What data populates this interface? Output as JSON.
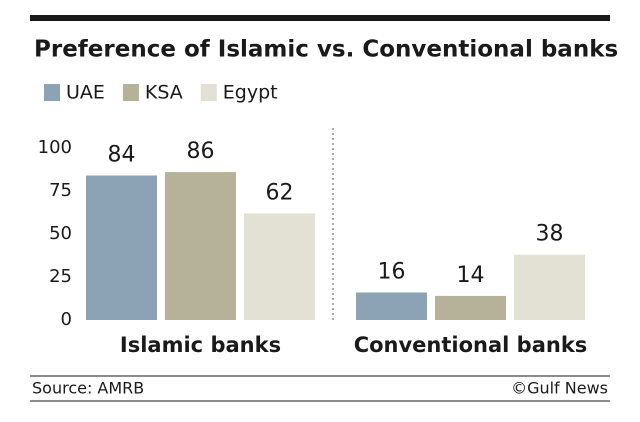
{
  "chart_data": {
    "type": "bar",
    "title": "Preference of Islamic vs. Conventional banks",
    "categories": [
      "Islamic banks",
      "Conventional banks"
    ],
    "series": [
      {
        "name": "UAE",
        "color": "#8ca3b5",
        "values": [
          84,
          16
        ]
      },
      {
        "name": "KSA",
        "color": "#b6b29a",
        "values": [
          86,
          14
        ]
      },
      {
        "name": "Egypt",
        "color": "#e3e0d4",
        "values": [
          62,
          38
        ]
      }
    ],
    "ylim": [
      0,
      100
    ],
    "yticks": [
      0,
      25,
      50,
      75,
      100
    ],
    "grid": false,
    "source": "Source: AMRB",
    "credit": "©Gulf News"
  }
}
